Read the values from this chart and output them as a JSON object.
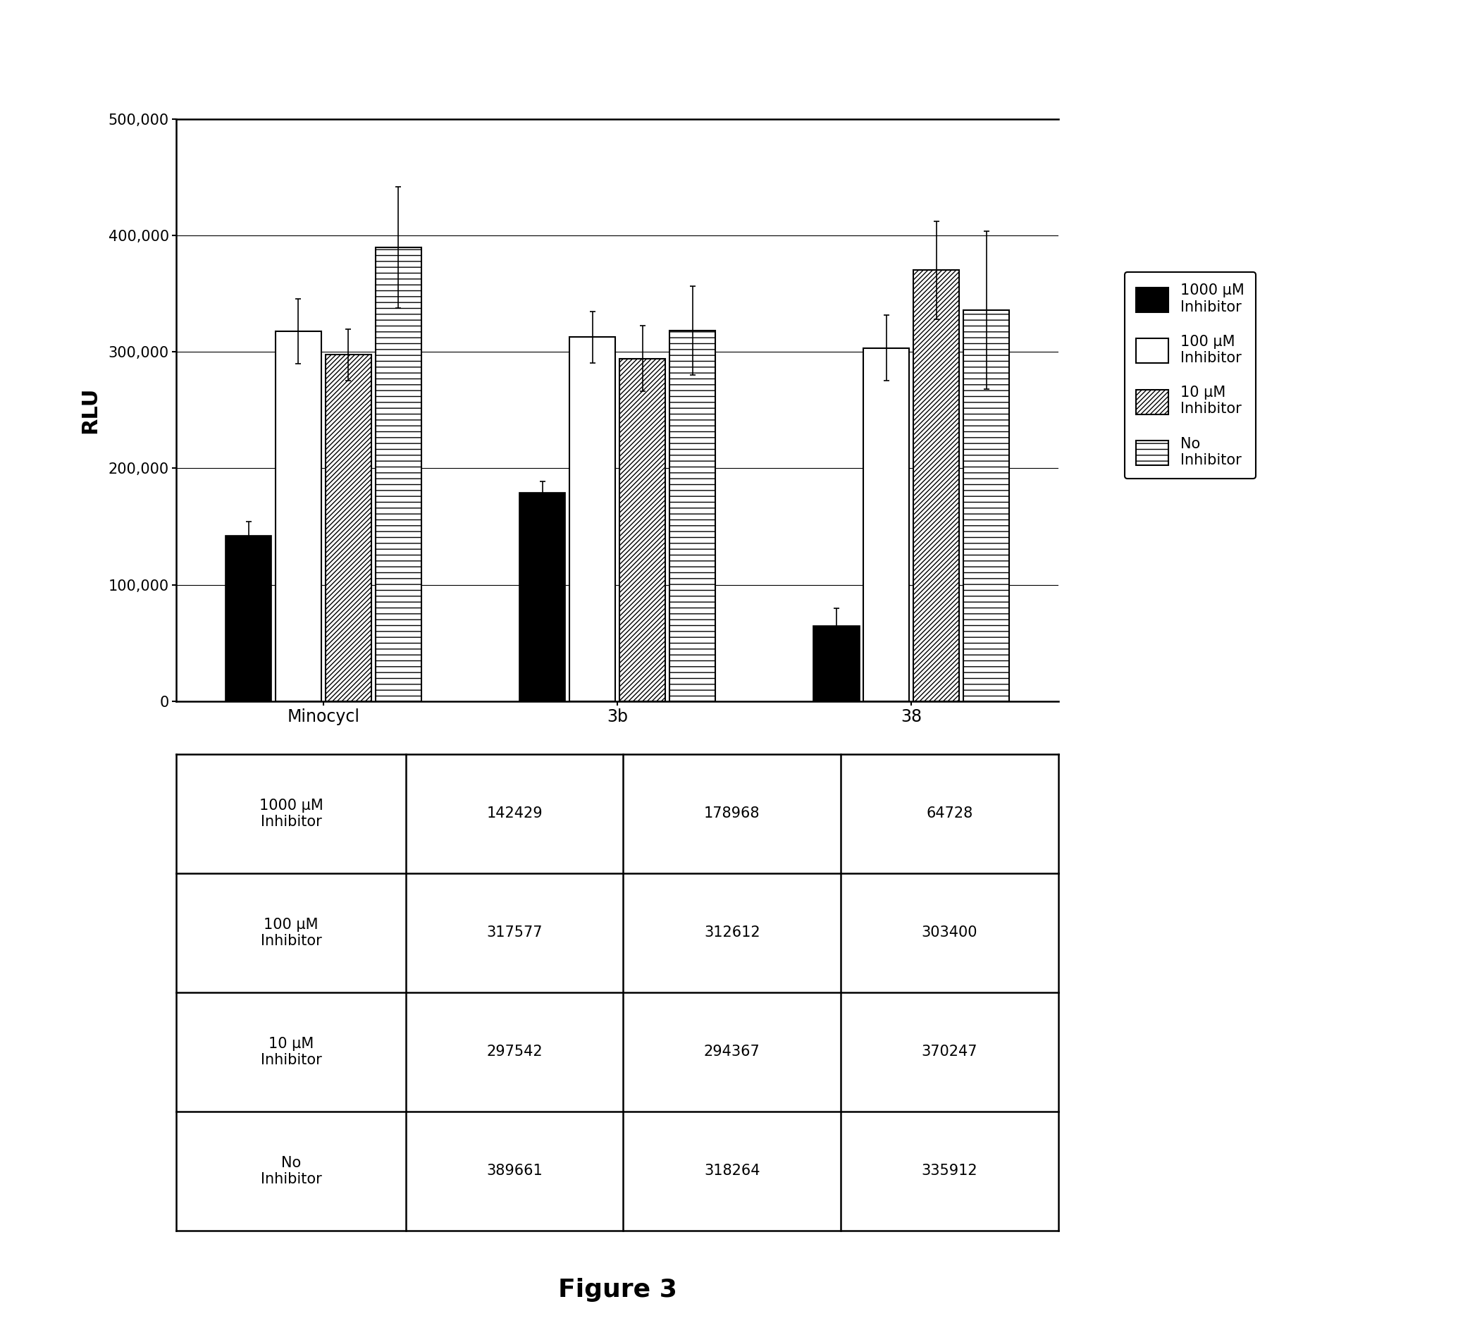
{
  "groups": [
    "Minocycl",
    "3b",
    "38"
  ],
  "values": {
    "1000uM": [
      142429,
      178968,
      64728
    ],
    "100uM": [
      317577,
      312612,
      303400
    ],
    "10uM": [
      297542,
      294367,
      370247
    ],
    "noInh": [
      389661,
      318264,
      335912
    ]
  },
  "errors": {
    "1000uM": [
      12000,
      10000,
      15000
    ],
    "100uM": [
      28000,
      22000,
      28000
    ],
    "10uM": [
      22000,
      28000,
      42000
    ],
    "noInh": [
      52000,
      38000,
      68000
    ]
  },
  "ylabel": "RLU",
  "ylim": [
    0,
    500000
  ],
  "yticks": [
    0,
    100000,
    200000,
    300000,
    400000,
    500000
  ],
  "ytick_labels": [
    "0",
    "100,000",
    "200,000",
    "300,000",
    "400,000",
    "500,000"
  ],
  "table_values": [
    [
      142429,
      178968,
      64728
    ],
    [
      317577,
      312612,
      303400
    ],
    [
      297542,
      294367,
      370247
    ],
    [
      389661,
      318264,
      335912
    ]
  ],
  "table_row_labels": [
    "1000 μM\nInhibitor",
    "100 μM\nInhibitor",
    "10 μM\nInhibitor",
    "No\nInhibitor"
  ],
  "legend_labels": [
    "1000 μM\nInhibitor",
    "100 μM\nInhibitor",
    "10 μM\nInhibitor",
    "No\nInhibitor"
  ],
  "figure_label": "Figure 3"
}
